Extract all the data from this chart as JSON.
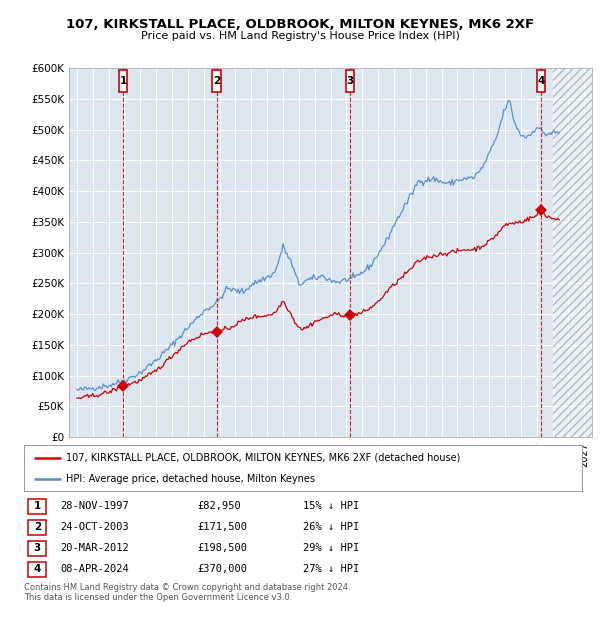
{
  "title": "107, KIRKSTALL PLACE, OLDBROOK, MILTON KEYNES, MK6 2XF",
  "subtitle": "Price paid vs. HM Land Registry's House Price Index (HPI)",
  "bg_color": "#dce6f1",
  "grid_color": "#ffffff",
  "red_line_color": "#cc0000",
  "blue_line_color": "#5b8fc9",
  "sale_dates_decimal": [
    1997.906,
    2003.811,
    2012.219,
    2024.271
  ],
  "sale_prices": [
    82950,
    171500,
    198500,
    370000
  ],
  "sale_labels": [
    "1",
    "2",
    "3",
    "4"
  ],
  "legend_red": "107, KIRKSTALL PLACE, OLDBROOK, MILTON KEYNES, MK6 2XF (detached house)",
  "legend_blue": "HPI: Average price, detached house, Milton Keynes",
  "table_rows": [
    [
      "1",
      "28-NOV-1997",
      "£82,950",
      "15% ↓ HPI"
    ],
    [
      "2",
      "24-OCT-2003",
      "£171,500",
      "26% ↓ HPI"
    ],
    [
      "3",
      "20-MAR-2012",
      "£198,500",
      "29% ↓ HPI"
    ],
    [
      "4",
      "08-APR-2024",
      "£370,000",
      "27% ↓ HPI"
    ]
  ],
  "footer": "Contains HM Land Registry data © Crown copyright and database right 2024.\nThis data is licensed under the Open Government Licence v3.0.",
  "ylim": [
    0,
    600000
  ],
  "ytick_values": [
    0,
    50000,
    100000,
    150000,
    200000,
    250000,
    300000,
    350000,
    400000,
    450000,
    500000,
    550000,
    600000
  ],
  "ytick_labels": [
    "£0",
    "£50K",
    "£100K",
    "£150K",
    "£200K",
    "£250K",
    "£300K",
    "£350K",
    "£400K",
    "£450K",
    "£500K",
    "£550K",
    "£600K"
  ],
  "xlim": [
    1994.5,
    2027.5
  ],
  "future_start": 2025.0,
  "hpi_anchors": [
    [
      1995.0,
      76000
    ],
    [
      1996.0,
      80000
    ],
    [
      1997.0,
      84000
    ],
    [
      1998.0,
      92000
    ],
    [
      1999.0,
      105000
    ],
    [
      2000.0,
      125000
    ],
    [
      2001.0,
      150000
    ],
    [
      2002.0,
      178000
    ],
    [
      2003.0,
      205000
    ],
    [
      2003.8,
      218000
    ],
    [
      2004.5,
      242000
    ],
    [
      2005.0,
      238000
    ],
    [
      2005.5,
      236000
    ],
    [
      2006.0,
      248000
    ],
    [
      2007.0,
      260000
    ],
    [
      2007.5,
      268000
    ],
    [
      2008.0,
      310000
    ],
    [
      2008.5,
      285000
    ],
    [
      2009.0,
      248000
    ],
    [
      2009.5,
      255000
    ],
    [
      2010.0,
      258000
    ],
    [
      2010.5,
      262000
    ],
    [
      2011.0,
      255000
    ],
    [
      2011.5,
      252000
    ],
    [
      2012.0,
      256000
    ],
    [
      2012.5,
      258000
    ],
    [
      2013.0,
      268000
    ],
    [
      2013.5,
      278000
    ],
    [
      2014.0,
      298000
    ],
    [
      2014.5,
      318000
    ],
    [
      2015.0,
      345000
    ],
    [
      2015.5,
      368000
    ],
    [
      2016.0,
      390000
    ],
    [
      2016.5,
      415000
    ],
    [
      2017.0,
      418000
    ],
    [
      2017.5,
      420000
    ],
    [
      2018.0,
      415000
    ],
    [
      2018.5,
      412000
    ],
    [
      2019.0,
      418000
    ],
    [
      2019.5,
      420000
    ],
    [
      2020.0,
      422000
    ],
    [
      2020.5,
      435000
    ],
    [
      2021.0,
      460000
    ],
    [
      2021.5,
      490000
    ],
    [
      2022.0,
      535000
    ],
    [
      2022.3,
      548000
    ],
    [
      2022.5,
      520000
    ],
    [
      2022.8,
      500000
    ],
    [
      2023.0,
      492000
    ],
    [
      2023.3,
      488000
    ],
    [
      2023.6,
      492000
    ],
    [
      2024.0,
      505000
    ],
    [
      2024.3,
      498000
    ],
    [
      2024.6,
      492000
    ],
    [
      2025.0,
      495000
    ]
  ],
  "red_anchors": [
    [
      1995.0,
      63000
    ],
    [
      1996.0,
      67000
    ],
    [
      1997.0,
      73000
    ],
    [
      1997.906,
      82950
    ],
    [
      1998.5,
      88000
    ],
    [
      1999.0,
      92000
    ],
    [
      2000.0,
      108000
    ],
    [
      2001.0,
      132000
    ],
    [
      2002.0,
      155000
    ],
    [
      2003.0,
      168000
    ],
    [
      2003.811,
      171500
    ],
    [
      2004.0,
      172000
    ],
    [
      2004.5,
      176000
    ],
    [
      2005.0,
      183000
    ],
    [
      2005.5,
      190000
    ],
    [
      2006.0,
      195000
    ],
    [
      2007.0,
      198000
    ],
    [
      2007.5,
      202000
    ],
    [
      2008.0,
      222000
    ],
    [
      2008.4,
      205000
    ],
    [
      2008.8,
      185000
    ],
    [
      2009.2,
      175000
    ],
    [
      2009.6,
      180000
    ],
    [
      2010.0,
      188000
    ],
    [
      2010.5,
      192000
    ],
    [
      2011.0,
      198000
    ],
    [
      2011.5,
      200000
    ],
    [
      2012.0,
      198000
    ],
    [
      2012.219,
      198500
    ],
    [
      2012.5,
      199000
    ],
    [
      2013.0,
      202000
    ],
    [
      2013.5,
      210000
    ],
    [
      2014.0,
      220000
    ],
    [
      2014.5,
      235000
    ],
    [
      2015.0,
      248000
    ],
    [
      2015.5,
      260000
    ],
    [
      2016.0,
      272000
    ],
    [
      2016.5,
      285000
    ],
    [
      2017.0,
      292000
    ],
    [
      2017.5,
      295000
    ],
    [
      2018.0,
      298000
    ],
    [
      2018.5,
      300000
    ],
    [
      2019.0,
      302000
    ],
    [
      2019.5,
      305000
    ],
    [
      2020.0,
      305000
    ],
    [
      2020.5,
      310000
    ],
    [
      2021.0,
      318000
    ],
    [
      2021.5,
      330000
    ],
    [
      2022.0,
      345000
    ],
    [
      2022.5,
      348000
    ],
    [
      2023.0,
      350000
    ],
    [
      2023.5,
      355000
    ],
    [
      2024.0,
      360000
    ],
    [
      2024.271,
      370000
    ],
    [
      2024.5,
      362000
    ],
    [
      2025.0,
      355000
    ]
  ]
}
